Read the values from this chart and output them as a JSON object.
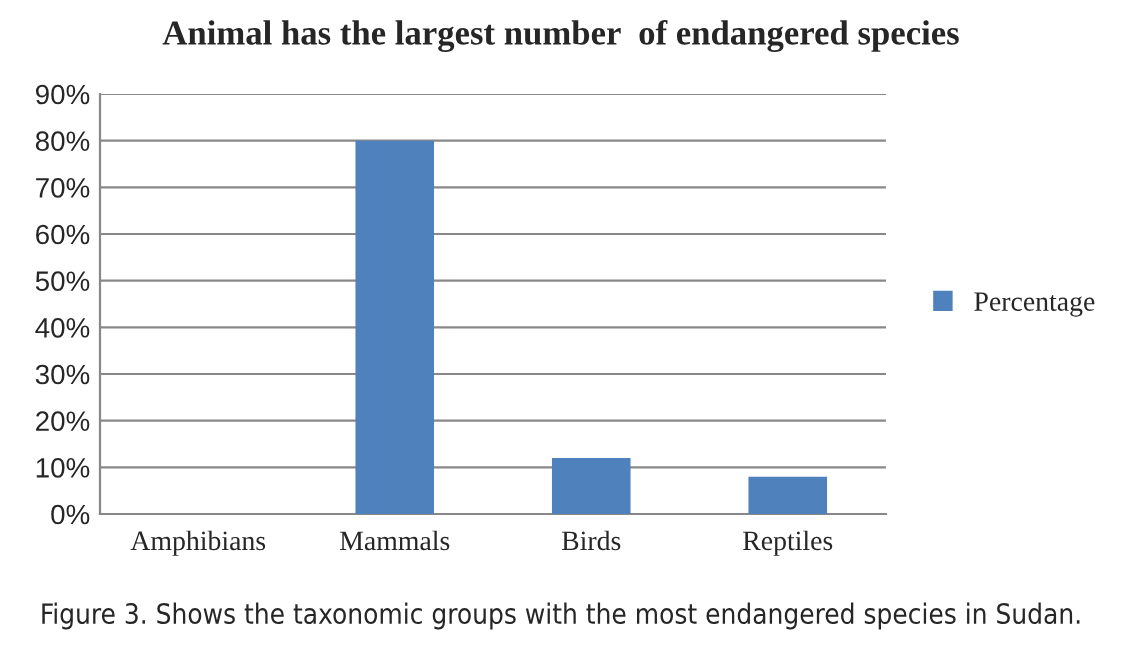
{
  "chart_data": {
    "type": "bar",
    "title": "Animal has the largest number  of endangered species",
    "categories": [
      "Amphibians",
      "Mammals",
      "Birds",
      "Reptiles"
    ],
    "series": [
      {
        "name": "Percentage",
        "color": "#4f81bd",
        "values": [
          0,
          80,
          12,
          8
        ]
      }
    ],
    "ylim": [
      0,
      90
    ],
    "yticks": [
      {
        "value": 0,
        "label": "0%"
      },
      {
        "value": 10,
        "label": "10%"
      },
      {
        "value": 20,
        "label": "20%"
      },
      {
        "value": 30,
        "label": "30%"
      },
      {
        "value": 40,
        "label": "40%"
      },
      {
        "value": 50,
        "label": "50%"
      },
      {
        "value": 60,
        "label": "60%"
      },
      {
        "value": 70,
        "label": "70%"
      },
      {
        "value": 80,
        "label": "80%"
      },
      {
        "value": 90,
        "label": "90%"
      }
    ],
    "grid": "y",
    "legend": "right",
    "annotations": [
      "Figure 3. Shows the taxonomic groups with the most endangered species in Sudan."
    ]
  }
}
